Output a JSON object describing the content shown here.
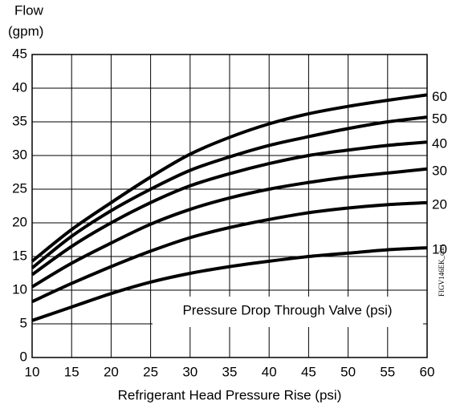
{
  "chart_data": {
    "type": "line",
    "y_label": [
      "Flow",
      "(gpm)"
    ],
    "x_label": "Refrigerant Head Pressure Rise  (psi)",
    "annotation": "Pressure Drop Through Valve (psi)",
    "side_label": "FIGV146EK_chrt",
    "x": [
      10,
      15,
      20,
      25,
      30,
      35,
      40,
      45,
      50,
      55,
      60
    ],
    "xlim": [
      10,
      60
    ],
    "xticks": [
      10,
      15,
      20,
      25,
      30,
      35,
      40,
      45,
      50,
      55,
      60
    ],
    "ylim": [
      0,
      45
    ],
    "yticks": [
      0,
      5,
      10,
      15,
      20,
      25,
      30,
      35,
      40,
      45
    ],
    "grid": true,
    "series": [
      {
        "name": "10",
        "color": "#000000",
        "values": [
          5.5,
          7.5,
          9.5,
          11.2,
          12.5,
          13.5,
          14.3,
          15,
          15.5,
          16,
          16.3
        ]
      },
      {
        "name": "20",
        "color": "#000000",
        "values": [
          8.3,
          11,
          13.5,
          15.8,
          17.8,
          19.3,
          20.5,
          21.5,
          22.2,
          22.7,
          23
        ]
      },
      {
        "name": "30",
        "color": "#000000",
        "values": [
          10.5,
          14,
          17,
          19.8,
          22,
          23.7,
          25,
          26,
          26.8,
          27.4,
          28
        ]
      },
      {
        "name": "40",
        "color": "#000000",
        "values": [
          12.3,
          16.5,
          20,
          23,
          25.5,
          27.3,
          28.8,
          30,
          30.8,
          31.5,
          32
        ]
      },
      {
        "name": "50",
        "color": "#000000",
        "values": [
          13.3,
          18,
          21.8,
          25,
          27.8,
          29.8,
          31.5,
          32.8,
          34,
          35,
          35.7
        ]
      },
      {
        "name": "60",
        "color": "#000000",
        "values": [
          14.3,
          19,
          23,
          26.8,
          30.2,
          32.7,
          34.7,
          36.2,
          37.3,
          38.2,
          39
        ]
      }
    ]
  }
}
